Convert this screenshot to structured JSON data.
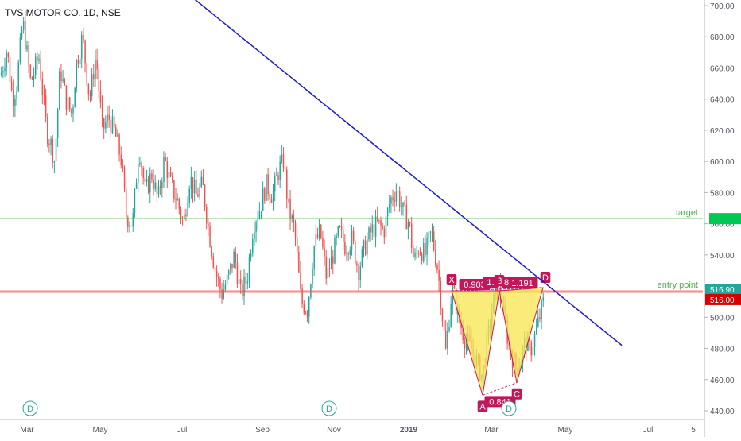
{
  "chart_data": {
    "type": "candlestick",
    "title": "TVS MOTOR CO, 1D, NSE",
    "x_tick_labels": [
      "Mar",
      "May",
      "Jul",
      "Sep",
      "Nov",
      "2019",
      "Mar",
      "May",
      "Jul",
      "5"
    ],
    "y_tick_labels": [
      "440.00",
      "460.00",
      "480.00",
      "500.00",
      "520.00",
      "540.00",
      "560.00",
      "580.00",
      "600.00",
      "620.00",
      "640.00",
      "660.00",
      "680.00",
      "700.00"
    ],
    "ylim": [
      436,
      704
    ],
    "grid": false,
    "colors": {
      "up": "#26a69a",
      "down": "#ef5350",
      "trendline": "#1a1acc",
      "pattern_fill": "#f7e64d",
      "pattern_stroke": "#c2185b",
      "label_bg": "#c2185b",
      "target_line": "#4caf50",
      "entry_line": "#ef5350"
    },
    "price_path": [
      [
        0,
        655
      ],
      [
        8,
        672
      ],
      [
        15,
        640
      ],
      [
        20,
        648
      ],
      [
        28,
        690
      ],
      [
        38,
        650
      ],
      [
        48,
        668
      ],
      [
        58,
        620
      ],
      [
        64,
        610
      ],
      [
        68,
        600
      ],
      [
        75,
        660
      ],
      [
        82,
        640
      ],
      [
        90,
        630
      ],
      [
        95,
        662
      ],
      [
        103,
        680
      ],
      [
        112,
        640
      ],
      [
        120,
        668
      ],
      [
        128,
        620
      ],
      [
        136,
        628
      ],
      [
        144,
        618
      ],
      [
        152,
        600
      ],
      [
        158,
        565
      ],
      [
        166,
        560
      ],
      [
        174,
        610
      ],
      [
        182,
        580
      ],
      [
        190,
        592
      ],
      [
        198,
        575
      ],
      [
        206,
        602
      ],
      [
        214,
        585
      ],
      [
        222,
        575
      ],
      [
        230,
        560
      ],
      [
        238,
        590
      ],
      [
        246,
        578
      ],
      [
        254,
        585
      ],
      [
        262,
        555
      ],
      [
        270,
        530
      ],
      [
        278,
        515
      ],
      [
        286,
        525
      ],
      [
        294,
        540
      ],
      [
        302,
        515
      ],
      [
        310,
        525
      ],
      [
        318,
        560
      ],
      [
        326,
        570
      ],
      [
        334,
        585
      ],
      [
        342,
        578
      ],
      [
        350,
        595
      ],
      [
        356,
        600
      ],
      [
        362,
        570
      ],
      [
        370,
        555
      ],
      [
        378,
        510
      ],
      [
        386,
        505
      ],
      [
        394,
        545
      ],
      [
        402,
        555
      ],
      [
        410,
        525
      ],
      [
        418,
        540
      ],
      [
        426,
        555
      ],
      [
        434,
        545
      ],
      [
        442,
        550
      ],
      [
        450,
        530
      ],
      [
        458,
        545
      ],
      [
        466,
        555
      ],
      [
        474,
        560
      ],
      [
        482,
        555
      ],
      [
        490,
        575
      ],
      [
        498,
        582
      ],
      [
        506,
        568
      ],
      [
        514,
        560
      ],
      [
        520,
        535
      ],
      [
        526,
        545
      ],
      [
        534,
        540
      ],
      [
        542,
        555
      ],
      [
        550,
        530
      ],
      [
        554,
        510
      ],
      [
        560,
        478
      ],
      [
        568,
        520
      ],
      [
        576,
        500
      ],
      [
        584,
        486
      ],
      [
        592,
        480
      ],
      [
        600,
        470
      ],
      [
        606,
        462
      ],
      [
        614,
        490
      ],
      [
        620,
        510
      ],
      [
        626,
        520
      ],
      [
        632,
        505
      ],
      [
        640,
        480
      ],
      [
        648,
        468
      ],
      [
        654,
        472
      ],
      [
        660,
        485
      ],
      [
        666,
        478
      ],
      [
        672,
        488
      ],
      [
        678,
        500
      ],
      [
        684,
        512
      ]
    ],
    "trendline": {
      "from": [
        "2018-02-22",
        730
      ],
      "to": [
        "2019-05-27",
        482
      ]
    },
    "horizontal_lines": [
      {
        "label": "target",
        "value": 563.3
      },
      {
        "label": "entry point",
        "value": 516.9
      },
      {
        "value": 516.0
      }
    ],
    "price_badges": [
      {
        "value": 516.9,
        "text": "516.90",
        "color": "#26a69a"
      },
      {
        "value": 516.0,
        "text": "516.00",
        "color": "#d50000"
      }
    ],
    "harmonic_pattern": {
      "points": {
        "X": [
          568,
          517
        ],
        "A": [
          607,
          450
        ],
        "B": [
          628,
          517
        ],
        "C": [
          650,
          458
        ],
        "D": [
          683,
          519
        ]
      },
      "ratios": [
        {
          "text": "0.903"
        },
        {
          "text": "1.191"
        },
        {
          "text": "0.841"
        },
        {
          "text": "1."
        },
        {
          "text": "8"
        }
      ]
    },
    "dividend_markers": [
      "D",
      "D",
      "D"
    ]
  }
}
